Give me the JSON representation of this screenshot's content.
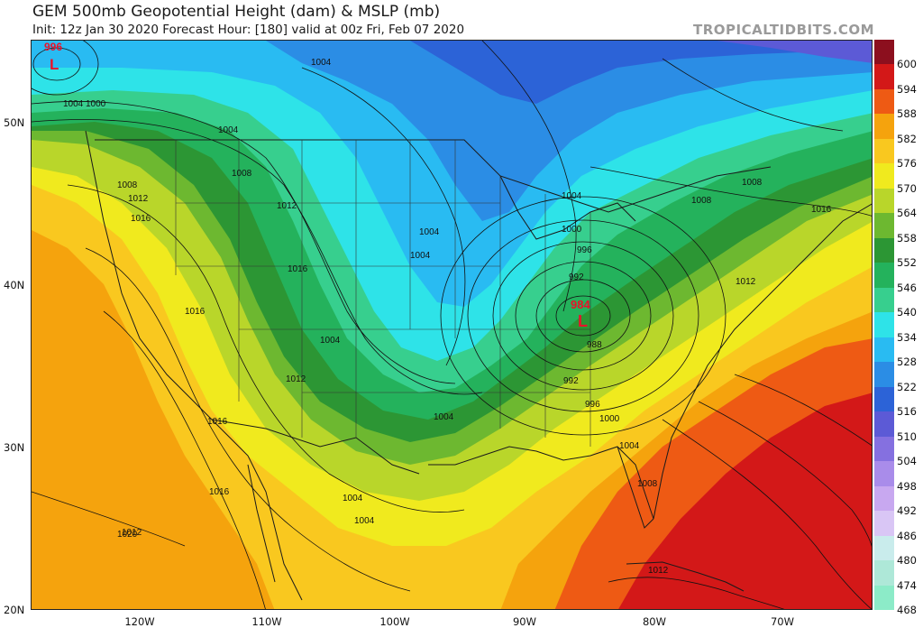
{
  "header": {
    "title": "GEM 500mb Geopotential Height (dam) & MSLP (mb)",
    "subtitle": "Init: 12z Jan 30 2020   Forecast Hour: [180]   valid at 00z Fri, Feb 07 2020",
    "brand": "TROPICALTIDBITS.COM"
  },
  "colorbar": {
    "levels": [
      "600",
      "594",
      "588",
      "582",
      "576",
      "570",
      "564",
      "558",
      "552",
      "546",
      "540",
      "534",
      "528",
      "522",
      "516",
      "510",
      "504",
      "498",
      "492",
      "486",
      "480",
      "474",
      "468"
    ],
    "colors": [
      "#8c0f1e",
      "#d31818",
      "#ee5a14",
      "#f5a30d",
      "#f9c81f",
      "#f0ea1e",
      "#b9d62a",
      "#6db830",
      "#2c9634",
      "#24b25c",
      "#37cf8e",
      "#2ee3e8",
      "#29bbf2",
      "#2b8de5",
      "#2c63d7",
      "#5c5ad6",
      "#8570e0",
      "#a98cea",
      "#c8a8f0",
      "#d9c6f5",
      "#c9ecec",
      "#aee8d8",
      "#8cebc8"
    ]
  },
  "axes": {
    "lat_labels": [
      "50N",
      "40N",
      "30N",
      "20N"
    ],
    "lon_labels": [
      "120W",
      "110W",
      "100W",
      "90W",
      "80W",
      "70W"
    ]
  },
  "lows": [
    {
      "label": "996",
      "mark": "L"
    },
    {
      "label": "984",
      "mark": "L"
    }
  ],
  "isobar_labels": [
    "1004",
    "1004",
    "1000",
    "1004",
    "1008",
    "1008",
    "1012",
    "1016",
    "1012",
    "1016",
    "1004",
    "1004",
    "1004",
    "1000",
    "996",
    "992",
    "988",
    "992",
    "996",
    "1000",
    "1004",
    "1008",
    "1016",
    "1008",
    "1012",
    "1016",
    "1020",
    "1004",
    "1004",
    "1008",
    "1012",
    "1004",
    "1016",
    "1012",
    "1004",
    "1016",
    "1012"
  ]
}
